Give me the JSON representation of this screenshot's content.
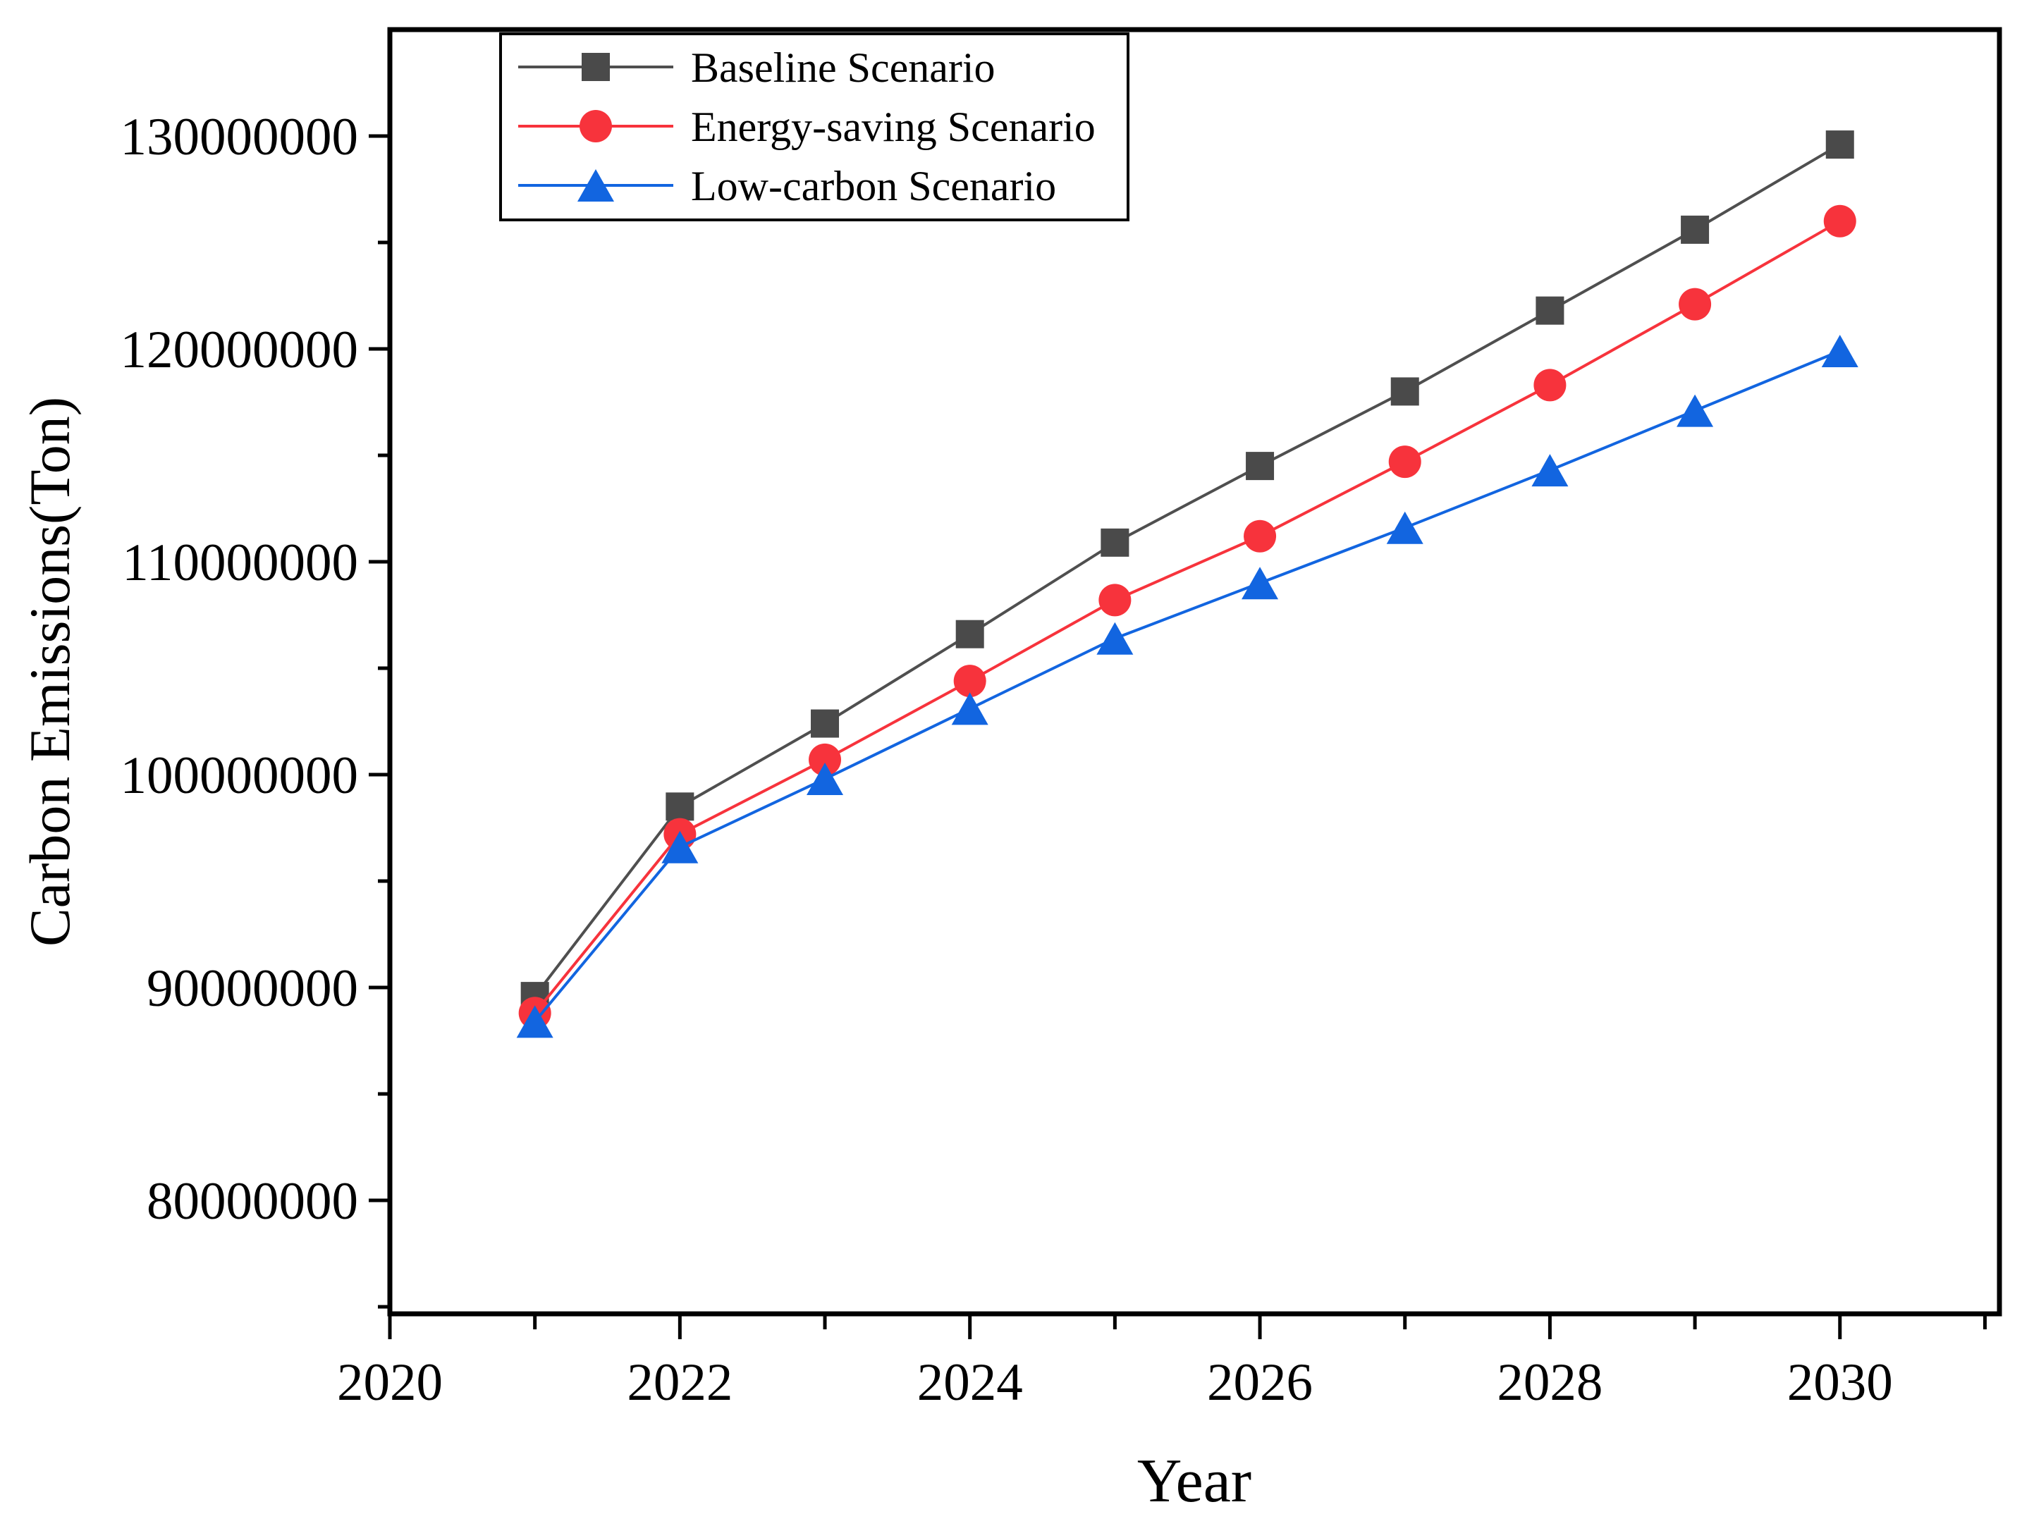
{
  "chart_data": {
    "type": "line",
    "title": "",
    "xlabel": "Year",
    "ylabel": "Carbon Emissions(Ton)",
    "x": [
      2021,
      2022,
      2023,
      2024,
      2025,
      2026,
      2027,
      2028,
      2029,
      2030
    ],
    "series": [
      {
        "name": "Baseline Scenario",
        "marker": "square",
        "color": "#4a4a4a",
        "line_color": "#4f4f4f",
        "values": [
          89600000,
          98500000,
          102400000,
          106600000,
          110900000,
          114500000,
          118000000,
          121800000,
          125600000,
          129600000
        ]
      },
      {
        "name": "Energy-saving Scenario",
        "marker": "circle",
        "color": "#f7333c",
        "line_color": "#f7333c",
        "values": [
          88800000,
          97200000,
          100700000,
          104400000,
          108200000,
          111200000,
          114700000,
          118300000,
          122100000,
          126000000
        ]
      },
      {
        "name": "Low-carbon Scenario",
        "marker": "triangle",
        "color": "#1265e0",
        "line_color": "#1265e0",
        "values": [
          88400000,
          96600000,
          99800000,
          103100000,
          106400000,
          109000000,
          111600000,
          114300000,
          117100000,
          119900000
        ]
      }
    ],
    "xlim": [
      2020,
      2031.1
    ],
    "ylim": [
      74670000,
      135000000
    ],
    "x_ticks": [
      2020,
      2022,
      2024,
      2026,
      2028,
      2030
    ],
    "x_minor_ticks": [
      2021,
      2023,
      2025,
      2027,
      2029,
      2031
    ],
    "y_ticks": [
      80000000,
      90000000,
      100000000,
      110000000,
      120000000,
      130000000
    ],
    "y_minor_ticks": [
      75000000,
      85000000,
      95000000,
      105000000,
      115000000,
      125000000
    ],
    "grid": false,
    "legend_position": "top-left",
    "axis_color": "#000000",
    "background_color": "#ffffff"
  }
}
